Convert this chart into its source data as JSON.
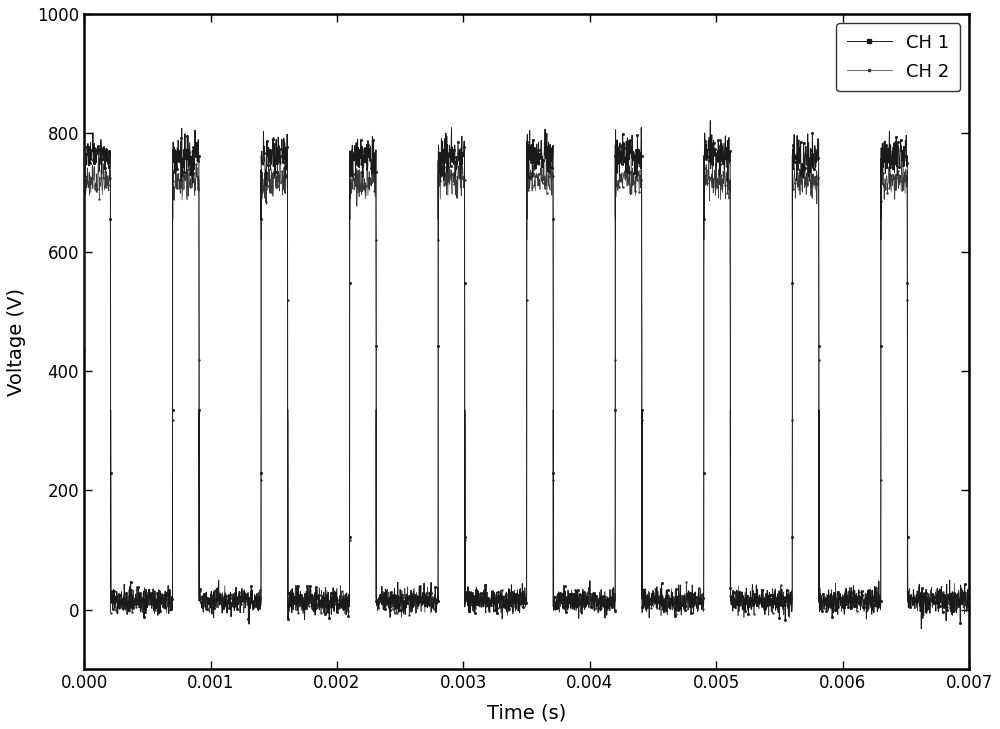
{
  "title": "",
  "xlabel": "Time (s)",
  "ylabel": "Voltage (V)",
  "xlim": [
    0.0,
    0.007
  ],
  "ylim": [
    -100,
    1000
  ],
  "yticks": [
    0,
    200,
    400,
    600,
    800,
    1000
  ],
  "xticks": [
    0.0,
    0.001,
    0.002,
    0.003,
    0.004,
    0.005,
    0.006,
    0.007
  ],
  "ch1_color": "#1a1a1a",
  "ch2_color": "#3a3a3a",
  "background_color": "#ffffff",
  "legend_loc": "upper right",
  "period": 0.0007,
  "duty_on": 0.3,
  "ch1_high": 762,
  "ch1_low": 15,
  "ch2_high": 722,
  "ch2_low": 15,
  "ch1_noise": 18,
  "ch2_noise": 15,
  "total_time": 0.007,
  "figsize": [
    10.0,
    7.29
  ],
  "dpi": 100,
  "marker_interval": 5e-05
}
